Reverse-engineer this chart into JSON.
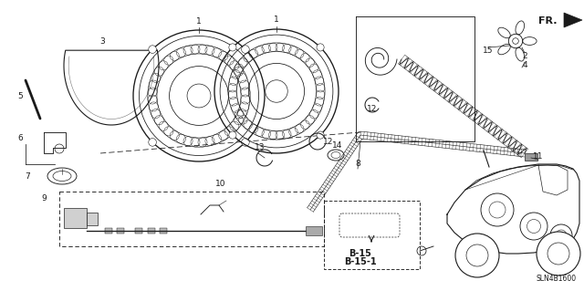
{
  "bg_color": "#ffffff",
  "line_color": "#1a1a1a",
  "fig_width": 6.4,
  "fig_height": 3.19,
  "dpi": 100,
  "diagram_code": "SLN4B1600",
  "b15_text": [
    "B-15",
    "B-15-1"
  ]
}
